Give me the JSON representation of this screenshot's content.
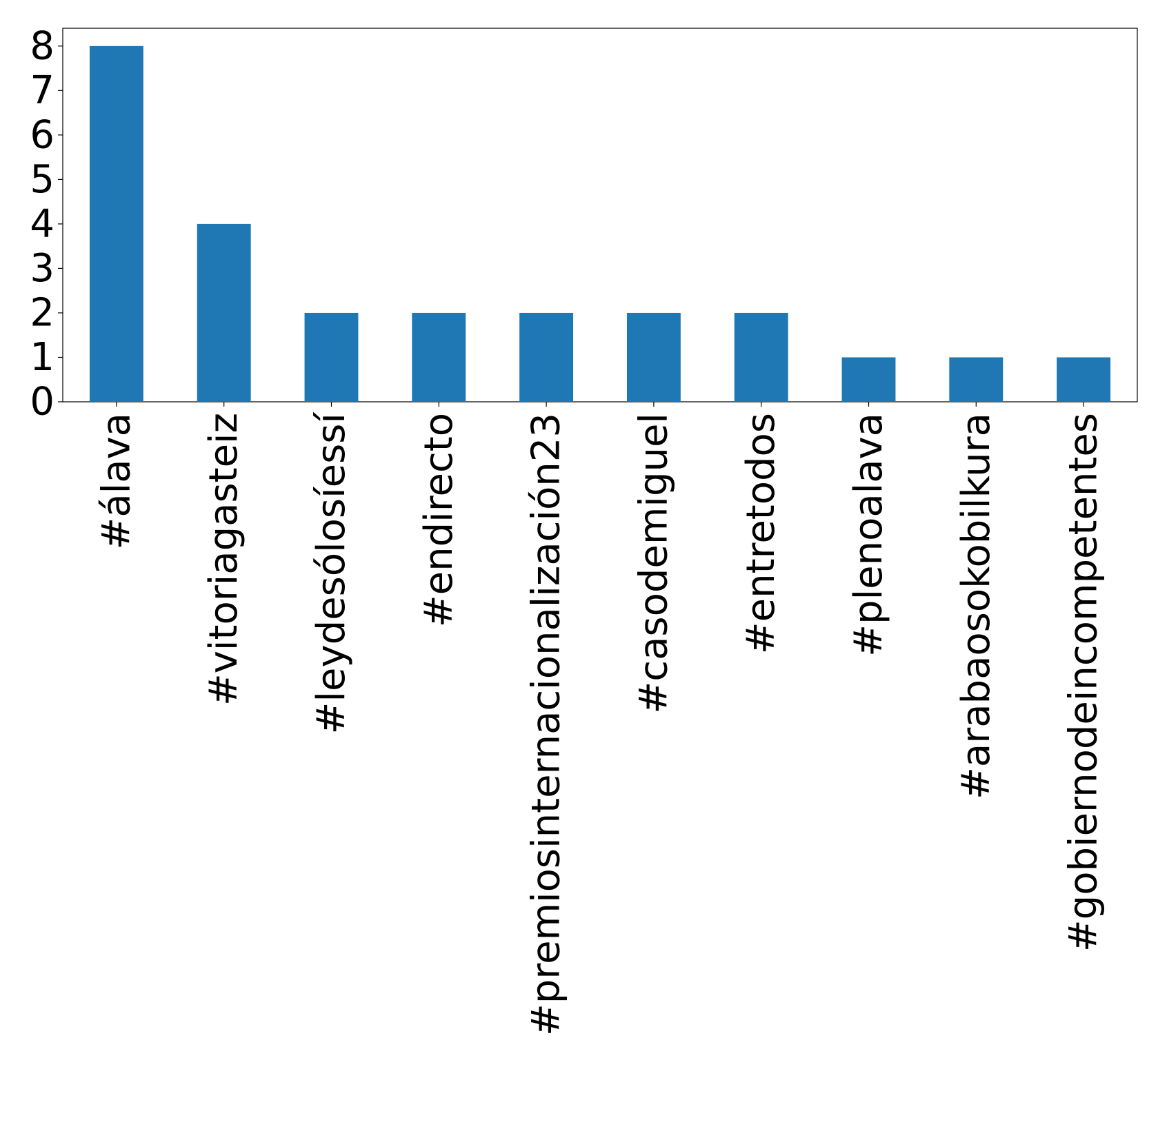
{
  "chart_data": {
    "type": "bar",
    "title": "",
    "xlabel": "",
    "ylabel": "",
    "categories": [
      "#álava",
      "#vitoriagasteiz",
      "#leydesólosíessí",
      "#endirecto",
      "#premiosinternacionalización23",
      "#casodemiguel",
      "#entretodos",
      "#plenoalava",
      "#arabaosokobilkura",
      "#gobiernodeincompetentes"
    ],
    "values": [
      8,
      4,
      2,
      2,
      2,
      2,
      2,
      1,
      1,
      1
    ],
    "ylim": [
      0,
      8.4
    ],
    "yticks": [
      0,
      1,
      2,
      3,
      4,
      5,
      6,
      7,
      8
    ],
    "bar_color": "#1f77b4",
    "grid": false,
    "legend": "none"
  }
}
